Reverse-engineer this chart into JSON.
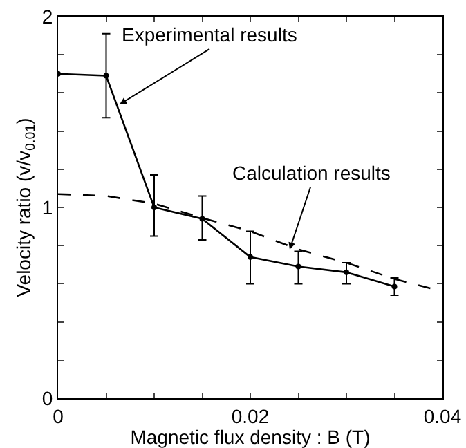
{
  "chart_data": {
    "type": "line",
    "xlabel": "Magnetic flux density : B (T)",
    "ylabel": "Velocity ratio (v/v$_{0.01}$)",
    "x": [
      0,
      0.005,
      0.01,
      0.015,
      0.02,
      0.025,
      0.03,
      0.035
    ],
    "series": [
      {
        "color": "#000000",
        "marker": "circle",
        "line_style": "solid",
        "values": [
          1.7,
          1.69,
          1.0,
          0.94,
          0.74,
          0.69,
          0.66,
          0.585
        ],
        "errors": [
          null,
          [
            1.47,
            1.91
          ],
          [
            0.85,
            1.17
          ],
          [
            0.83,
            1.06
          ],
          [
            0.6,
            0.875
          ],
          [
            0.6,
            0.77
          ],
          [
            0.6,
            0.71
          ],
          [
            0.54,
            0.63
          ]
        ]
      },
      {
        "color": "#000000",
        "marker": "none",
        "line_style": "dashed",
        "x": [
          0,
          0.005,
          0.01,
          0.015,
          0.02,
          0.025,
          0.03,
          0.035,
          0.04
        ],
        "values": [
          1.07,
          1.06,
          1.02,
          0.945,
          0.875,
          0.78,
          0.71,
          0.625,
          0.56
        ]
      }
    ],
    "xlim": [
      0,
      0.04
    ],
    "ylim": [
      0,
      2
    ],
    "xticks": [
      0,
      {
        "value": 0.005,
        "label": null
      },
      {
        "value": 0.01,
        "label": null
      },
      {
        "value": 0.015,
        "label": null
      },
      0.02,
      {
        "value": 0.025,
        "label": null
      },
      {
        "value": 0.03,
        "label": null
      },
      {
        "value": 0.035,
        "label": null
      },
      0.04
    ],
    "yticks": [
      0,
      {
        "value": 0.2,
        "label": null
      },
      {
        "value": 0.4,
        "label": null
      },
      {
        "value": 0.6,
        "label": null
      },
      {
        "value": 0.8,
        "label": null
      },
      1,
      {
        "value": 1.2,
        "label": null
      },
      {
        "value": 1.4,
        "label": null
      },
      {
        "value": 1.6,
        "label": null
      },
      {
        "value": 1.8,
        "label": null
      },
      2
    ],
    "annotations": [
      {
        "text": "Experimental results",
        "x": 0.0064,
        "y": 1.54
      },
      {
        "text": "Calculation results",
        "x": 0.0241,
        "y": 0.78
      }
    ],
    "grid": false
  }
}
